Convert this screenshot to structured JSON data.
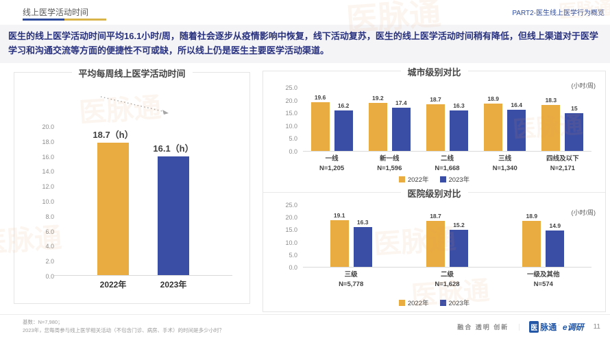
{
  "header": {
    "title": "线上医学活动时间",
    "part_label": "PART2-医生线上医学行为概览"
  },
  "intro": {
    "text": "医生的线上医学活动时间平均16.1小时/周，随着社会逐步从疫情影响中恢复，线下活动复苏，医生的线上医学活动时间稍有降低，但线上渠道对于医学学习和沟通交流等方面的便捷性不可或缺，所以线上仍是医生主要医学活动渠道。"
  },
  "colors": {
    "series_2022": "#E9AC40",
    "series_2023": "#3B4EA5",
    "accent_blue": "#2E4B9B",
    "accent_yellow": "#D8B44A",
    "intro_text": "#28317E"
  },
  "chart_data": [
    {
      "id": "weekly",
      "type": "bar",
      "title": "平均每周线上医学活动时间",
      "categories": [
        "2022年",
        "2023年"
      ],
      "values": [
        18.7,
        16.1
      ],
      "value_labels": [
        "18.7（h）",
        "16.1（h）"
      ],
      "series_colors": [
        "#E9AC40",
        "#3B4EA5"
      ],
      "yticks": [
        20.0,
        18.0,
        16.0,
        14.0,
        12.0,
        10.0,
        8.0,
        6.0,
        4.0,
        2.0,
        0.0
      ],
      "ylim": [
        0,
        20
      ],
      "annotation": "declining dashed trend arrow between bars"
    },
    {
      "id": "city",
      "type": "grouped-bar",
      "title": "城市级别对比",
      "unit": "(小时/周)",
      "categories": [
        "一线",
        "新一线",
        "二线",
        "三线",
        "四线及以下"
      ],
      "sample_sizes": [
        "N=1,205",
        "N=1,596",
        "N=1,668",
        "N=1,340",
        "N=2,171"
      ],
      "series": [
        {
          "name": "2022年",
          "values": [
            19.6,
            19.2,
            18.7,
            18.9,
            18.3
          ],
          "labels": [
            "19.6",
            "19.2",
            "18.7",
            "18.9",
            "18.3"
          ]
        },
        {
          "name": "2023年",
          "values": [
            16.2,
            17.4,
            16.3,
            16.4,
            15
          ],
          "labels": [
            "16.2",
            "17.4",
            "16.3",
            "16.4",
            "15"
          ]
        }
      ],
      "series_colors": [
        "#E9AC40",
        "#3B4EA5"
      ],
      "yticks": [
        25.0,
        20.0,
        15.0,
        10.0,
        5.0,
        0.0
      ],
      "ylim": [
        0,
        25
      ],
      "legend": [
        "2022年",
        "2023年"
      ],
      "legend_position": "bottom-center"
    },
    {
      "id": "hospital",
      "type": "grouped-bar",
      "title": "医院级别对比",
      "unit": "(小时/周)",
      "categories": [
        "三级",
        "二级",
        "一级及其他"
      ],
      "sample_sizes": [
        "N=5,778",
        "N=1,628",
        "N=574"
      ],
      "series": [
        {
          "name": "2022年",
          "values": [
            19.1,
            18.7,
            18.9
          ],
          "labels": [
            "19.1",
            "18.7",
            "18.9"
          ]
        },
        {
          "name": "2023年",
          "values": [
            16.3,
            15.2,
            14.9
          ],
          "labels": [
            "16.3",
            "15.2",
            "14.9"
          ]
        }
      ],
      "series_colors": [
        "#E9AC40",
        "#3B4EA5"
      ],
      "yticks": [
        25.0,
        20.0,
        15.0,
        10.0,
        5.0,
        0.0
      ],
      "ylim": [
        0,
        25
      ],
      "legend": [
        "2022年",
        "2023年"
      ],
      "legend_position": "bottom-center"
    }
  ],
  "footer": {
    "note_line1": "基数：N=7,980；",
    "note_line2": "2023年，您每周参与线上医学相关活动（不包含门诊、病房、手术）的时间是多少小时？",
    "slogan": "融合 透明 创新",
    "divider": "｜",
    "logo_first": "医",
    "logo_rest": "脉通",
    "logo_sub": "e调研",
    "page_number": "11"
  },
  "watermark": {
    "text": "医脉通"
  }
}
